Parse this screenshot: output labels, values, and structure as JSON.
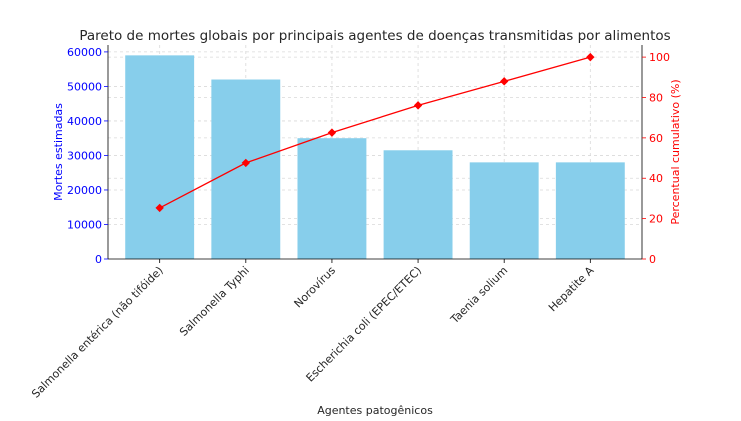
{
  "chart_data": {
    "type": "bar",
    "title": "Pareto de mortes globais por principais agentes de doenças transmitidas por alimentos",
    "xlabel": "Agentes patogênicos",
    "ylabel": "Mortes estimadas",
    "y2label": "Percentual cumulativo (%)",
    "categories": [
      "Salmonella entérica (não tifóide)",
      "Salmonella Typhi",
      "Norovírus",
      "Escherichia coli (EPEC/ETEC)",
      "Taenia solium",
      "Hepatite A"
    ],
    "series": [
      {
        "type": "bar",
        "axis": "left",
        "color": "#87ceeb",
        "values": [
          59000,
          52000,
          35000,
          31500,
          28000,
          28000
        ]
      },
      {
        "type": "line",
        "axis": "right",
        "color": "#ff0000",
        "marker": "diamond",
        "values": [
          25.3,
          47.6,
          62.6,
          76.1,
          88.0,
          100.0
        ]
      }
    ],
    "ylim": [
      0,
      62000
    ],
    "yticks": [
      0,
      10000,
      20000,
      30000,
      40000,
      50000,
      60000
    ],
    "y2lim": [
      0,
      106
    ],
    "y2ticks": [
      0,
      20,
      40,
      60,
      80,
      100
    ],
    "grid": true,
    "left_axis_color": "#0000ff",
    "right_axis_color": "#ff0000"
  }
}
